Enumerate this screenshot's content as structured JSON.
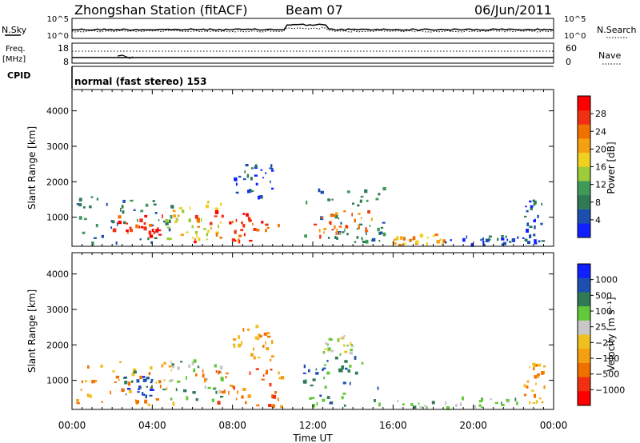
{
  "header": {
    "title": "Zhongshan Station (fitACF)",
    "beam": "Beam 07",
    "date": "06/Jun/2011"
  },
  "noise_panel": {
    "left_label": "N.Sky",
    "right_label": "N.Search",
    "ticks": [
      "10^5",
      "10^0"
    ]
  },
  "freq_panel": {
    "left_label_1": "Freq.",
    "left_label_2": "[MHz]",
    "left_ticks": [
      "18",
      "8"
    ],
    "right_label": "Nave",
    "right_ticks": [
      "60",
      "0"
    ]
  },
  "cpid": {
    "label": "CPID",
    "value": "normal (fast stereo) 153"
  },
  "colors": {
    "power": [
      "#1020ff",
      "#1c4fb0",
      "#2f7a55",
      "#3f9a5a",
      "#9ecb3a",
      "#f0d020",
      "#f5a011",
      "#f07000",
      "#f03010",
      "#ff0000"
    ],
    "velocity": [
      "#1020ff",
      "#1c4fb0",
      "#2f7a55",
      "#62c83a",
      "#c8c8c8",
      "#f0c020",
      "#f5a011",
      "#f07000",
      "#f03010",
      "#ff0000"
    ]
  },
  "chart_data": [
    {
      "type": "heatmap",
      "name": "power",
      "xlabel": "Time UT",
      "ylabel": "Slant Range [km]",
      "x_ticks": [
        "00:00",
        "04:00",
        "08:00",
        "12:00",
        "16:00",
        "20:00",
        "00:00"
      ],
      "y_ticks": [
        "1000",
        "2000",
        "3000",
        "4000"
      ],
      "ylim": [
        180,
        4600
      ],
      "xlim_hours": [
        0,
        24
      ],
      "colorbar_label": "Power [dB]",
      "colorbar_ticks": [
        "4",
        "8",
        "12",
        "16",
        "20",
        "24",
        "28"
      ],
      "regions": [
        {
          "t0": 0.2,
          "t1": 5.0,
          "r0": 300,
          "r1": 1600,
          "c": 2
        },
        {
          "t0": 2.0,
          "t1": 4.5,
          "r0": 500,
          "r1": 1100,
          "c": 8
        },
        {
          "t0": 4.5,
          "t1": 7.5,
          "r0": 400,
          "r1": 1600,
          "c": 5
        },
        {
          "t0": 6.0,
          "t1": 10.5,
          "r0": 300,
          "r1": 1200,
          "c": 8
        },
        {
          "t0": 8.0,
          "t1": 10.0,
          "r0": 1600,
          "r1": 2600,
          "c": 1
        },
        {
          "t0": 11.5,
          "t1": 15.5,
          "r0": 300,
          "r1": 1900,
          "c": 2
        },
        {
          "t0": 12.0,
          "t1": 15.0,
          "r0": 500,
          "r1": 1200,
          "c": 7
        },
        {
          "t0": 16.0,
          "t1": 18.5,
          "r0": 250,
          "r1": 550,
          "c": 6
        },
        {
          "t0": 18.5,
          "t1": 22.5,
          "r0": 250,
          "r1": 500,
          "c": 1
        },
        {
          "t0": 22.5,
          "t1": 23.5,
          "r0": 250,
          "r1": 1500,
          "c": 1
        }
      ]
    },
    {
      "type": "heatmap",
      "name": "velocity",
      "xlabel": "Time UT",
      "ylabel": "Slant Range [km]",
      "x_ticks": [
        "00:00",
        "04:00",
        "08:00",
        "12:00",
        "16:00",
        "20:00",
        "00:00"
      ],
      "y_ticks": [
        "1000",
        "2000",
        "3000",
        "4000"
      ],
      "ylim": [
        180,
        4600
      ],
      "xlim_hours": [
        0,
        24
      ],
      "colorbar_label": "Velocity [m s⁻¹]",
      "colorbar_ticks": [
        "1000",
        "500",
        "100",
        "25",
        "−25",
        "−100",
        "−500",
        "−1000"
      ],
      "regions": [
        {
          "t0": 0.2,
          "t1": 5.0,
          "r0": 300,
          "r1": 1600,
          "c": 6
        },
        {
          "t0": 2.5,
          "t1": 4.0,
          "r0": 500,
          "r1": 1300,
          "c": 1
        },
        {
          "t0": 4.5,
          "t1": 7.5,
          "r0": 400,
          "r1": 1600,
          "c": 3
        },
        {
          "t0": 6.0,
          "t1": 10.5,
          "r0": 300,
          "r1": 1400,
          "c": 7
        },
        {
          "t0": 8.0,
          "t1": 10.0,
          "r0": 1600,
          "r1": 2600,
          "c": 6
        },
        {
          "t0": 11.5,
          "t1": 15.5,
          "r0": 300,
          "r1": 1700,
          "c": 2
        },
        {
          "t0": 12.5,
          "t1": 14.0,
          "r0": 1700,
          "r1": 2300,
          "c": 4
        },
        {
          "t0": 16.0,
          "t1": 22.5,
          "r0": 250,
          "r1": 550,
          "c": 3
        },
        {
          "t0": 22.5,
          "t1": 23.5,
          "r0": 250,
          "r1": 1500,
          "c": 6
        }
      ]
    }
  ]
}
